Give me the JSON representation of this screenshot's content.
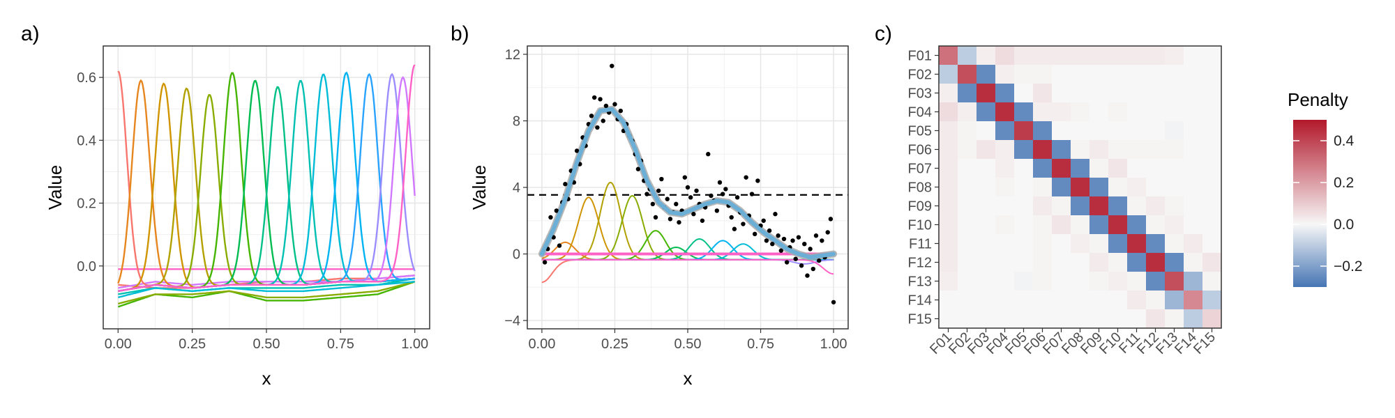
{
  "panels": {
    "a": "a)",
    "b": "b)",
    "c": "c)"
  },
  "chart_data": [
    {
      "type": "line",
      "panel": "a)",
      "xlabel": "x",
      "ylabel": "Value",
      "xlim": [
        -0.05,
        1.05
      ],
      "ylim": [
        -0.2,
        0.7
      ],
      "x_ticks": [
        0,
        0.25,
        0.5,
        0.75,
        1
      ],
      "x_tick_labels": [
        "0.00",
        "0.25",
        "0.50",
        "0.75",
        "1.00"
      ],
      "y_ticks": [
        0,
        0.2,
        0.4,
        0.6
      ],
      "y_tick_labels": [
        "0.0",
        "0.2",
        "0.4",
        "0.6"
      ],
      "grid": true,
      "peak_series": [
        {
          "color": "#F8766D",
          "center": 0.0,
          "peak": 0.62
        },
        {
          "color": "#E7851E",
          "center": 0.077,
          "peak": 0.59
        },
        {
          "color": "#D09400",
          "center": 0.154,
          "peak": 0.58
        },
        {
          "color": "#B2A100",
          "center": 0.231,
          "peak": 0.565
        },
        {
          "color": "#89AC00",
          "center": 0.308,
          "peak": 0.545
        },
        {
          "color": "#45B500",
          "center": 0.385,
          "peak": 0.615
        },
        {
          "color": "#00BC51",
          "center": 0.462,
          "peak": 0.59
        },
        {
          "color": "#00C087",
          "center": 0.538,
          "peak": 0.57
        },
        {
          "color": "#00C0B2",
          "center": 0.615,
          "peak": 0.59
        },
        {
          "color": "#00BCD6",
          "center": 0.692,
          "peak": 0.61
        },
        {
          "color": "#00B3F2",
          "center": 0.769,
          "peak": 0.615
        },
        {
          "color": "#29A3FF",
          "center": 0.846,
          "peak": 0.61
        },
        {
          "color": "#9C8DFF",
          "center": 0.923,
          "peak": 0.61
        },
        {
          "color": "#D277FF",
          "center": 0.96,
          "peak": 0.6
        },
        {
          "color": "#FF61C7",
          "center": 1.0,
          "peak": 0.64
        }
      ],
      "baseline_series": [
        {
          "color": "#F8766D",
          "values": [
            -0.06,
            -0.07,
            -0.07,
            -0.06,
            -0.05,
            -0.05,
            -0.04,
            -0.04,
            -0.03
          ]
        },
        {
          "color": "#FF61C7",
          "values": [
            -0.01,
            -0.01,
            -0.01,
            -0.01,
            -0.01,
            -0.01,
            -0.01,
            -0.01,
            -0.01
          ]
        },
        {
          "color": "#45B500",
          "values": [
            -0.13,
            -0.09,
            -0.1,
            -0.08,
            -0.11,
            -0.11,
            -0.1,
            -0.09,
            -0.05
          ]
        },
        {
          "color": "#89AC00",
          "values": [
            -0.12,
            -0.09,
            -0.09,
            -0.08,
            -0.1,
            -0.1,
            -0.09,
            -0.08,
            -0.05
          ]
        },
        {
          "color": "#00C0B2",
          "values": [
            -0.09,
            -0.07,
            -0.08,
            -0.07,
            -0.07,
            -0.07,
            -0.06,
            -0.06,
            -0.04
          ]
        },
        {
          "color": "#29A3FF",
          "values": [
            -0.08,
            -0.06,
            -0.07,
            -0.06,
            -0.06,
            -0.06,
            -0.05,
            -0.05,
            -0.04
          ]
        },
        {
          "color": "#D277FF",
          "values": [
            -0.07,
            -0.05,
            -0.06,
            -0.05,
            -0.05,
            -0.05,
            -0.05,
            -0.04,
            -0.03
          ]
        },
        {
          "color": "#00BCD6",
          "values": [
            -0.1,
            -0.07,
            -0.08,
            -0.07,
            -0.08,
            -0.08,
            -0.07,
            -0.06,
            -0.05
          ]
        }
      ]
    },
    {
      "type": "scatter",
      "panel": "b)",
      "xlabel": "x",
      "ylabel": "Value",
      "xlim": [
        -0.05,
        1.05
      ],
      "ylim": [
        -4.5,
        12.5
      ],
      "x_ticks": [
        0,
        0.25,
        0.5,
        0.75,
        1
      ],
      "x_tick_labels": [
        "0.00",
        "0.25",
        "0.50",
        "0.75",
        "1.00"
      ],
      "y_ticks": [
        -4,
        0,
        4,
        8,
        12
      ],
      "y_tick_labels": [
        "−4",
        "0",
        "4",
        "8",
        "12"
      ],
      "grid": true,
      "hline": {
        "y": 3.55,
        "style": "dashed"
      },
      "fit_x": [
        0,
        0.04,
        0.08,
        0.12,
        0.16,
        0.2,
        0.24,
        0.28,
        0.32,
        0.36,
        0.4,
        0.44,
        0.48,
        0.52,
        0.56,
        0.6,
        0.64,
        0.68,
        0.72,
        0.76,
        0.8,
        0.84,
        0.88,
        0.92,
        0.96,
        1.0
      ],
      "fit_y": [
        0.0,
        1.5,
        3.3,
        5.5,
        7.4,
        8.6,
        8.7,
        7.9,
        6.3,
        4.4,
        3.1,
        2.5,
        2.4,
        2.7,
        3.0,
        3.2,
        3.1,
        2.6,
        1.9,
        1.3,
        0.8,
        0.3,
        0.0,
        -0.2,
        -0.1,
        0.0
      ],
      "points": [
        [
          0.01,
          -0.5
        ],
        [
          0.02,
          0.3
        ],
        [
          0.03,
          2.2
        ],
        [
          0.04,
          1.0
        ],
        [
          0.05,
          2.6
        ],
        [
          0.06,
          0.5
        ],
        [
          0.07,
          3.1
        ],
        [
          0.08,
          4.2
        ],
        [
          0.09,
          3.3
        ],
        [
          0.1,
          5.0
        ],
        [
          0.11,
          4.3
        ],
        [
          0.12,
          6.2
        ],
        [
          0.13,
          5.4
        ],
        [
          0.14,
          7.0
        ],
        [
          0.15,
          6.5
        ],
        [
          0.16,
          7.8
        ],
        [
          0.17,
          8.3
        ],
        [
          0.18,
          9.4
        ],
        [
          0.19,
          7.6
        ],
        [
          0.2,
          9.3
        ],
        [
          0.21,
          8.0
        ],
        [
          0.22,
          8.9
        ],
        [
          0.23,
          8.5
        ],
        [
          0.24,
          11.3
        ],
        [
          0.25,
          9.0
        ],
        [
          0.26,
          8.1
        ],
        [
          0.27,
          8.6
        ],
        [
          0.28,
          7.4
        ],
        [
          0.29,
          7.8
        ],
        [
          0.3,
          7.1
        ],
        [
          0.31,
          6.8
        ],
        [
          0.32,
          6.0
        ],
        [
          0.33,
          5.1
        ],
        [
          0.34,
          5.6
        ],
        [
          0.35,
          4.4
        ],
        [
          0.36,
          3.6
        ],
        [
          0.37,
          3.9
        ],
        [
          0.38,
          3.0
        ],
        [
          0.39,
          2.2
        ],
        [
          0.4,
          3.8
        ],
        [
          0.41,
          4.5
        ],
        [
          0.42,
          2.8
        ],
        [
          0.43,
          3.3
        ],
        [
          0.44,
          2.1
        ],
        [
          0.45,
          2.5
        ],
        [
          0.46,
          3.0
        ],
        [
          0.47,
          1.9
        ],
        [
          0.48,
          2.6
        ],
        [
          0.49,
          4.6
        ],
        [
          0.5,
          4.0
        ],
        [
          0.51,
          3.4
        ],
        [
          0.52,
          2.4
        ],
        [
          0.53,
          3.8
        ],
        [
          0.54,
          3.0
        ],
        [
          0.55,
          2.0
        ],
        [
          0.56,
          2.8
        ],
        [
          0.57,
          6.0
        ],
        [
          0.58,
          3.5
        ],
        [
          0.59,
          3.2
        ],
        [
          0.6,
          2.6
        ],
        [
          0.61,
          4.3
        ],
        [
          0.62,
          3.6
        ],
        [
          0.63,
          3.9
        ],
        [
          0.64,
          2.9
        ],
        [
          0.65,
          2.2
        ],
        [
          0.66,
          1.5
        ],
        [
          0.67,
          3.4
        ],
        [
          0.68,
          2.5
        ],
        [
          0.69,
          1.8
        ],
        [
          0.7,
          4.6
        ],
        [
          0.71,
          2.3
        ],
        [
          0.72,
          3.6
        ],
        [
          0.73,
          1.2
        ],
        [
          0.74,
          4.4
        ],
        [
          0.75,
          1.7
        ],
        [
          0.76,
          2.0
        ],
        [
          0.77,
          0.8
        ],
        [
          0.78,
          1.4
        ],
        [
          0.79,
          0.6
        ],
        [
          0.8,
          2.4
        ],
        [
          0.81,
          1.1
        ],
        [
          0.82,
          0.2
        ],
        [
          0.83,
          0.9
        ],
        [
          0.84,
          -0.5
        ],
        [
          0.85,
          0.4
        ],
        [
          0.86,
          0.8
        ],
        [
          0.87,
          -0.3
        ],
        [
          0.88,
          1.0
        ],
        [
          0.89,
          -0.7
        ],
        [
          0.9,
          0.6
        ],
        [
          0.91,
          -1.3
        ],
        [
          0.92,
          0.3
        ],
        [
          0.93,
          -0.9
        ],
        [
          0.94,
          1.1
        ],
        [
          0.95,
          -0.4
        ],
        [
          0.96,
          0.8
        ],
        [
          0.97,
          -0.2
        ],
        [
          0.98,
          1.3
        ],
        [
          0.99,
          2.1
        ],
        [
          1.0,
          -2.9
        ]
      ],
      "component_series": [
        {
          "color": "#F8766D",
          "center": 0.0,
          "peak": -1.7
        },
        {
          "color": "#E7851E",
          "center": 0.08,
          "peak": 0.7
        },
        {
          "color": "#D09400",
          "center": 0.16,
          "peak": 3.4
        },
        {
          "color": "#B2A100",
          "center": 0.235,
          "peak": 4.3
        },
        {
          "color": "#89AC00",
          "center": 0.31,
          "peak": 3.5
        },
        {
          "color": "#45B500",
          "center": 0.39,
          "peak": 1.4
        },
        {
          "color": "#00BC51",
          "center": 0.46,
          "peak": 0.4
        },
        {
          "color": "#00C087",
          "center": 0.54,
          "peak": 0.9
        },
        {
          "color": "#00BCD6",
          "center": 0.69,
          "peak": 0.6
        },
        {
          "color": "#00B3F2",
          "center": 0.62,
          "peak": 0.8
        },
        {
          "color": "#9C8DFF",
          "center": 0.9,
          "peak": -0.6
        },
        {
          "color": "#FF61C7",
          "center": 1.0,
          "peak": -1.2
        }
      ]
    },
    {
      "type": "heatmap",
      "panel": "c)",
      "legend_title": "Penalty",
      "legend_ticks": [
        0.4,
        0.2,
        0.0,
        -0.2
      ],
      "legend_tick_labels": [
        "0.4",
        "0.2",
        "0.0",
        "−0.2"
      ],
      "color_range": [
        -0.3,
        0.5
      ],
      "colors": {
        "low": "#4575B4",
        "mid": "#F7F7F7",
        "high": "#B2182B"
      },
      "row_labels": [
        "F01",
        "F02",
        "F03",
        "F04",
        "F05",
        "F06",
        "F07",
        "F08",
        "F09",
        "F10",
        "F11",
        "F12",
        "F13",
        "F14",
        "F15"
      ],
      "col_labels": [
        "F01",
        "F02",
        "F03",
        "F04",
        "F05",
        "F06",
        "F07",
        "F08",
        "F09",
        "F10",
        "F11",
        "F12",
        "F13",
        "F14",
        "F15"
      ],
      "matrix": [
        [
          0.3,
          -0.1,
          0.02,
          0.06,
          0.03,
          0.03,
          0.03,
          0.03,
          0.03,
          0.03,
          0.03,
          0.03,
          0.02,
          0,
          0
        ],
        [
          -0.1,
          0.38,
          -0.25,
          0.02,
          0.01,
          0.01,
          0,
          0,
          0,
          0,
          0,
          0,
          0,
          0,
          0
        ],
        [
          0.02,
          -0.25,
          0.45,
          -0.25,
          0,
          0.04,
          0,
          0,
          0,
          0,
          0,
          0,
          0,
          0,
          0
        ],
        [
          0.06,
          0.02,
          -0.25,
          0.45,
          -0.25,
          0.02,
          0.02,
          0.01,
          0,
          0.01,
          0,
          0,
          0,
          0,
          0
        ],
        [
          0.03,
          0.01,
          0,
          -0.25,
          0.42,
          -0.25,
          0,
          0,
          0,
          0,
          0,
          0,
          -0.01,
          0,
          0
        ],
        [
          0.03,
          0.01,
          0.04,
          0.02,
          -0.25,
          0.45,
          -0.25,
          0.01,
          0.03,
          0.01,
          0.01,
          0.01,
          0.01,
          0,
          0
        ],
        [
          0.03,
          0,
          0,
          0.02,
          0,
          -0.25,
          0.45,
          -0.25,
          0.01,
          0.04,
          0,
          0,
          0,
          0,
          0
        ],
        [
          0.03,
          0,
          0,
          0.01,
          0,
          0.01,
          -0.25,
          0.45,
          -0.25,
          0.01,
          0.02,
          0,
          0,
          0,
          0
        ],
        [
          0.03,
          0,
          0,
          0,
          0,
          0.03,
          0.01,
          -0.25,
          0.45,
          -0.25,
          0.01,
          0.03,
          0.01,
          0,
          0
        ],
        [
          0.03,
          0,
          0,
          0.01,
          0,
          0.01,
          0.04,
          0.01,
          -0.25,
          0.45,
          -0.25,
          0.01,
          0.02,
          0,
          0
        ],
        [
          0.03,
          0,
          0,
          0,
          0,
          0.01,
          0,
          0.02,
          0.01,
          -0.25,
          0.45,
          -0.25,
          0.01,
          0.03,
          0
        ],
        [
          0.03,
          0,
          0,
          0,
          0,
          0.01,
          0,
          0,
          0.03,
          0.01,
          -0.25,
          0.45,
          -0.25,
          0.01,
          0.04
        ],
        [
          0.02,
          0,
          0,
          0,
          -0.01,
          0.01,
          0,
          0,
          0.01,
          0.02,
          0.01,
          -0.25,
          0.38,
          -0.15,
          0.01
        ],
        [
          0,
          0,
          0,
          0,
          0,
          0,
          0,
          0,
          0,
          0,
          0.03,
          0.01,
          -0.15,
          0.25,
          -0.1
        ],
        [
          0,
          0,
          0,
          0,
          0,
          0,
          0,
          0,
          0,
          0,
          0,
          0.04,
          0.01,
          -0.1,
          0.08
        ]
      ]
    }
  ]
}
